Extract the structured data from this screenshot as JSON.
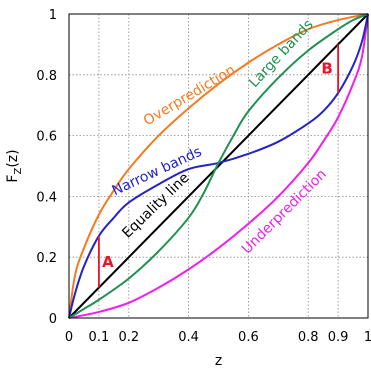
{
  "chart_data": {
    "type": "line",
    "title": "",
    "xlabel": "z",
    "ylabel": "F",
    "ylabel_sub": "Z",
    "ylabel_suffix": "(z)",
    "xlim": [
      0,
      1
    ],
    "ylim": [
      0,
      1
    ],
    "grid": true,
    "grid_style": "dotted",
    "x_ticks": [
      {
        "value": 0,
        "label": "0"
      },
      {
        "value": 0.1,
        "label": "0.1"
      },
      {
        "value": 0.2,
        "label": "0.2"
      },
      {
        "value": 0.4,
        "label": "0.4"
      },
      {
        "value": 0.6,
        "label": "0.6"
      },
      {
        "value": 0.8,
        "label": "0.8"
      },
      {
        "value": 0.9,
        "label": "0.9"
      },
      {
        "value": 1,
        "label": "1"
      }
    ],
    "y_ticks": [
      {
        "value": 0,
        "label": "0"
      },
      {
        "value": 0.2,
        "label": "0.2"
      },
      {
        "value": 0.4,
        "label": "0.4"
      },
      {
        "value": 0.6,
        "label": "0.6"
      },
      {
        "value": 0.8,
        "label": "0.8"
      },
      {
        "value": 1,
        "label": "1"
      }
    ],
    "series": [
      {
        "name": "Overprediction",
        "color": "#f47b20",
        "x": [
          0,
          0.02,
          0.05,
          0.1,
          0.15,
          0.2,
          0.3,
          0.4,
          0.5,
          0.6,
          0.7,
          0.8,
          0.9,
          1.0
        ],
        "y": [
          0,
          0.14,
          0.23,
          0.34,
          0.42,
          0.49,
          0.6,
          0.69,
          0.77,
          0.84,
          0.9,
          0.95,
          0.98,
          1.0
        ]
      },
      {
        "name": "Underprediction",
        "color": "#f01ef0",
        "x": [
          0,
          0.1,
          0.2,
          0.3,
          0.4,
          0.5,
          0.6,
          0.7,
          0.8,
          0.85,
          0.9,
          0.95,
          0.98,
          1.0
        ],
        "y": [
          0,
          0.02,
          0.05,
          0.1,
          0.16,
          0.23,
          0.31,
          0.4,
          0.51,
          0.58,
          0.66,
          0.77,
          0.86,
          1.0
        ]
      },
      {
        "name": "Equality line",
        "color": "#000000",
        "x": [
          0,
          1
        ],
        "y": [
          0,
          1
        ]
      },
      {
        "name": "Narrow bands",
        "color": "#2323c8",
        "x": [
          0,
          0.02,
          0.05,
          0.1,
          0.15,
          0.2,
          0.3,
          0.4,
          0.5,
          0.6,
          0.7,
          0.8,
          0.85,
          0.9,
          0.95,
          0.98,
          1.0
        ],
        "y": [
          0,
          0.08,
          0.17,
          0.27,
          0.33,
          0.38,
          0.44,
          0.49,
          0.51,
          0.54,
          0.58,
          0.64,
          0.68,
          0.74,
          0.83,
          0.91,
          1.0
        ]
      },
      {
        "name": "Large bands",
        "color": "#1f9150",
        "x": [
          0,
          0.05,
          0.1,
          0.2,
          0.3,
          0.4,
          0.45,
          0.5,
          0.55,
          0.6,
          0.7,
          0.8,
          0.9,
          0.95,
          1.0
        ],
        "y": [
          0,
          0.03,
          0.06,
          0.13,
          0.22,
          0.33,
          0.41,
          0.51,
          0.6,
          0.68,
          0.79,
          0.88,
          0.95,
          0.98,
          1.0
        ]
      }
    ],
    "markers": [
      {
        "label": "A",
        "x": 0.1,
        "y_from": 0.1,
        "y_to": 0.27,
        "color": "#e8142a"
      },
      {
        "label": "B",
        "x": 0.9,
        "y_from": 0.74,
        "y_to": 0.9,
        "color": "#e8142a"
      }
    ]
  }
}
